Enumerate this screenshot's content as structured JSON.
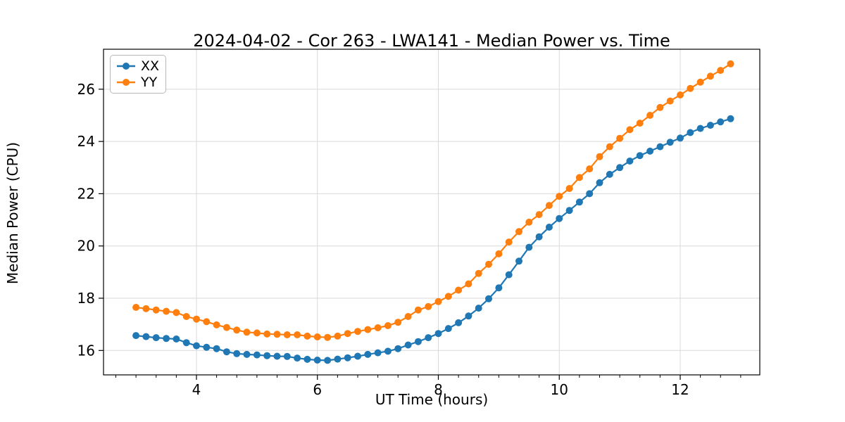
{
  "chart_data": {
    "type": "line",
    "title": "2024-04-02 - Cor 263 - LWA141 - Median Power vs. Time",
    "xlabel": "UT Time (hours)",
    "ylabel": "Median Power (CPU)",
    "xlim": [
      2.463,
      13.316
    ],
    "ylim": [
      15.066,
      27.53
    ],
    "x_major_ticks": [
      4,
      6,
      8,
      10,
      12
    ],
    "x_minor_tick_interval": 0.3333,
    "y_major_ticks": [
      16,
      18,
      20,
      22,
      24,
      26
    ],
    "grid": true,
    "legend_position": "upper-left",
    "grid_color": "#d9d9d9",
    "spine_color": "#000000",
    "x": [
      3.0,
      3.1667,
      3.3333,
      3.5,
      3.6667,
      3.8333,
      4.0,
      4.1667,
      4.3333,
      4.5,
      4.6667,
      4.8333,
      5.0,
      5.1667,
      5.3333,
      5.5,
      5.6667,
      5.8333,
      6.0,
      6.1667,
      6.3333,
      6.5,
      6.6667,
      6.8333,
      7.0,
      7.1667,
      7.3333,
      7.5,
      7.6667,
      7.8333,
      8.0,
      8.1667,
      8.3333,
      8.5,
      8.6667,
      8.8333,
      9.0,
      9.1667,
      9.3333,
      9.5,
      9.6667,
      9.8333,
      10.0,
      10.1667,
      10.3333,
      10.5,
      10.6667,
      10.8333,
      11.0,
      11.1667,
      11.3333,
      11.5,
      11.6667,
      11.8333,
      12.0,
      12.1667,
      12.3333,
      12.5,
      12.6667,
      12.8333
    ],
    "series": [
      {
        "name": "XX",
        "color": "#1f77b4",
        "marker": "circle",
        "values": [
          16.57,
          16.53,
          16.49,
          16.46,
          16.44,
          16.3,
          16.18,
          16.12,
          16.07,
          15.95,
          15.88,
          15.85,
          15.83,
          15.8,
          15.78,
          15.77,
          15.71,
          15.66,
          15.63,
          15.62,
          15.67,
          15.72,
          15.78,
          15.85,
          15.91,
          15.97,
          16.07,
          16.21,
          16.34,
          16.49,
          16.65,
          16.84,
          17.06,
          17.32,
          17.62,
          17.98,
          18.4,
          18.9,
          19.42,
          19.95,
          20.35,
          20.72,
          21.05,
          21.36,
          21.68,
          22.0,
          22.42,
          22.74,
          23.0,
          23.25,
          23.46,
          23.63,
          23.8,
          23.97,
          24.13,
          24.34,
          24.5,
          24.62,
          24.75,
          24.87
        ]
      },
      {
        "name": "YY",
        "color": "#ff7f0e",
        "marker": "circle",
        "values": [
          17.65,
          17.6,
          17.55,
          17.5,
          17.45,
          17.3,
          17.2,
          17.1,
          16.98,
          16.88,
          16.78,
          16.7,
          16.67,
          16.63,
          16.62,
          16.6,
          16.6,
          16.55,
          16.52,
          16.5,
          16.55,
          16.65,
          16.73,
          16.8,
          16.87,
          16.95,
          17.08,
          17.3,
          17.55,
          17.68,
          17.87,
          18.07,
          18.31,
          18.55,
          18.95,
          19.3,
          19.7,
          20.15,
          20.55,
          20.91,
          21.2,
          21.55,
          21.9,
          22.2,
          22.62,
          22.95,
          23.42,
          23.8,
          24.12,
          24.45,
          24.7,
          25.0,
          25.3,
          25.55,
          25.78,
          26.03,
          26.27,
          26.5,
          26.72,
          26.97
        ]
      }
    ]
  }
}
